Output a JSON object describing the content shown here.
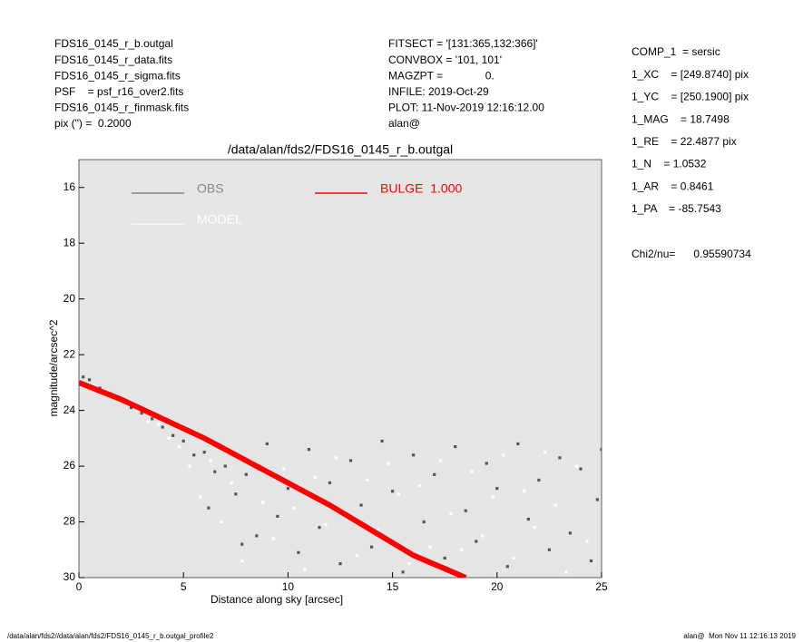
{
  "header": {
    "left": [
      "FDS16_0145_r_b.outgal",
      "FDS16_0145_r_data.fits",
      "FDS16_0145_r_sigma.fits",
      "PSF    = psf_r16_over2.fits",
      "FDS16_0145_r_finmask.fits",
      "pix (\") =  0.2000"
    ],
    "middle": [
      "FITSECT = '[131:365,132:366]'",
      "CONVBOX = '101, 101'",
      "MAGZPT =              0.",
      "INFILE: 2019-Oct-29",
      "PLOT: 11-Nov-2019 12:16:12.00",
      "alan@"
    ],
    "right": [
      "COMP_1  = sersic",
      "1_XC    = [249.8740] pix",
      "1_YC    = [250.1900] pix",
      "1_MAG    = 18.7498",
      "1_RE    = 22.4877 pix",
      "1_N    = 1.0532",
      "1_AR    = 0.8461",
      "1_PA    = -85.7543"
    ],
    "chi2": "Chi2/nu=      0.95590734"
  },
  "footer": {
    "left": "/data/alan/fds2//data/alan/fds2/FDS16_0145_r_b.outgal_profile2",
    "right": "alan@  Mon Nov 11 12:16:13 2019"
  },
  "chart_data": {
    "type": "scatter",
    "title": "/data/alan/fds2/FDS16_0145_r_b.outgal",
    "x_label": "Distance along sky [arcsec]",
    "y_label": "magnitude/arcsec^2",
    "xlim": [
      0,
      25
    ],
    "xticks": [
      0,
      5,
      10,
      15,
      20,
      25
    ],
    "ylim": [
      15,
      30
    ],
    "yticks": [
      16,
      18,
      20,
      22,
      24,
      26,
      28,
      30
    ],
    "y_inverted": true,
    "background": "#e5e5e5",
    "series": [
      {
        "name": "OBS",
        "color": "#555555",
        "mode": "points",
        "x": [
          0.2,
          0.5,
          1,
          1.5,
          2,
          2.5,
          3,
          3.5,
          4,
          4.5,
          5,
          5.5,
          6,
          6.5,
          7,
          7.5,
          8,
          8.5,
          9,
          9.5,
          10,
          10.5,
          11,
          11.5,
          12,
          12.5,
          13,
          13.5,
          14,
          14.5,
          15,
          15.5,
          16,
          16.5,
          17,
          17.5,
          18,
          18.5,
          19,
          19.5,
          20,
          20.5,
          21,
          21.5,
          22,
          22.5,
          23,
          23.5,
          24,
          24.5,
          25,
          24.8,
          6.2,
          7.8
        ],
        "y": [
          22.8,
          22.9,
          23.2,
          23.4,
          23.6,
          23.9,
          24.1,
          24.3,
          24.6,
          24.9,
          25.1,
          25.6,
          25.5,
          26.2,
          26.0,
          27.0,
          26.3,
          28.5,
          25.2,
          27.8,
          26.8,
          29.1,
          25.4,
          28.2,
          26.6,
          29.5,
          25.8,
          27.4,
          28.9,
          25.1,
          26.9,
          29.8,
          25.6,
          28.0,
          26.3,
          29.3,
          25.3,
          27.6,
          28.7,
          25.9,
          26.8,
          29.6,
          25.2,
          27.9,
          26.5,
          29.0,
          25.7,
          28.4,
          26.1,
          29.4,
          25.4,
          27.2,
          27.5,
          28.8
        ]
      },
      {
        "name": "MODEL",
        "color": "#ffffff",
        "mode": "points",
        "x": [
          0.7,
          1.2,
          1.8,
          2.3,
          2.8,
          3.3,
          3.8,
          4.3,
          4.8,
          5.3,
          5.8,
          6.3,
          6.8,
          7.3,
          7.8,
          8.3,
          8.8,
          9.3,
          9.8,
          10.3,
          10.8,
          11.3,
          11.8,
          12.3,
          12.8,
          13.3,
          13.8,
          14.3,
          14.8,
          15.3,
          15.8,
          16.3,
          16.8,
          17.3,
          17.8,
          18.3,
          18.8,
          19.3,
          19.8,
          20.3,
          20.8,
          21.3,
          21.8,
          22.3,
          22.8,
          23.3,
          23.8,
          24.3
        ],
        "y": [
          23.1,
          23.3,
          23.5,
          23.8,
          24.0,
          24.4,
          24.5,
          25.0,
          25.3,
          26.0,
          27.1,
          25.8,
          28.0,
          26.6,
          29.4,
          25.9,
          27.3,
          28.6,
          26.1,
          27.5,
          29.7,
          26.4,
          28.1,
          25.7,
          27.9,
          29.2,
          26.5,
          28.3,
          25.9,
          27.0,
          29.5,
          26.7,
          28.9,
          25.8,
          27.7,
          29.0,
          26.2,
          28.5,
          27.1,
          25.6,
          29.3,
          26.9,
          28.2,
          25.5,
          27.4,
          29.8,
          26.0,
          28.7
        ]
      },
      {
        "name": "BULGE  1.000",
        "color": "#ff0000",
        "mode": "line",
        "x": [
          0,
          2,
          4,
          6,
          8,
          10,
          12,
          14,
          16,
          18.5
        ],
        "y": [
          23.0,
          23.6,
          24.3,
          25.0,
          25.8,
          26.6,
          27.4,
          28.3,
          29.2,
          30.0
        ]
      }
    ]
  }
}
